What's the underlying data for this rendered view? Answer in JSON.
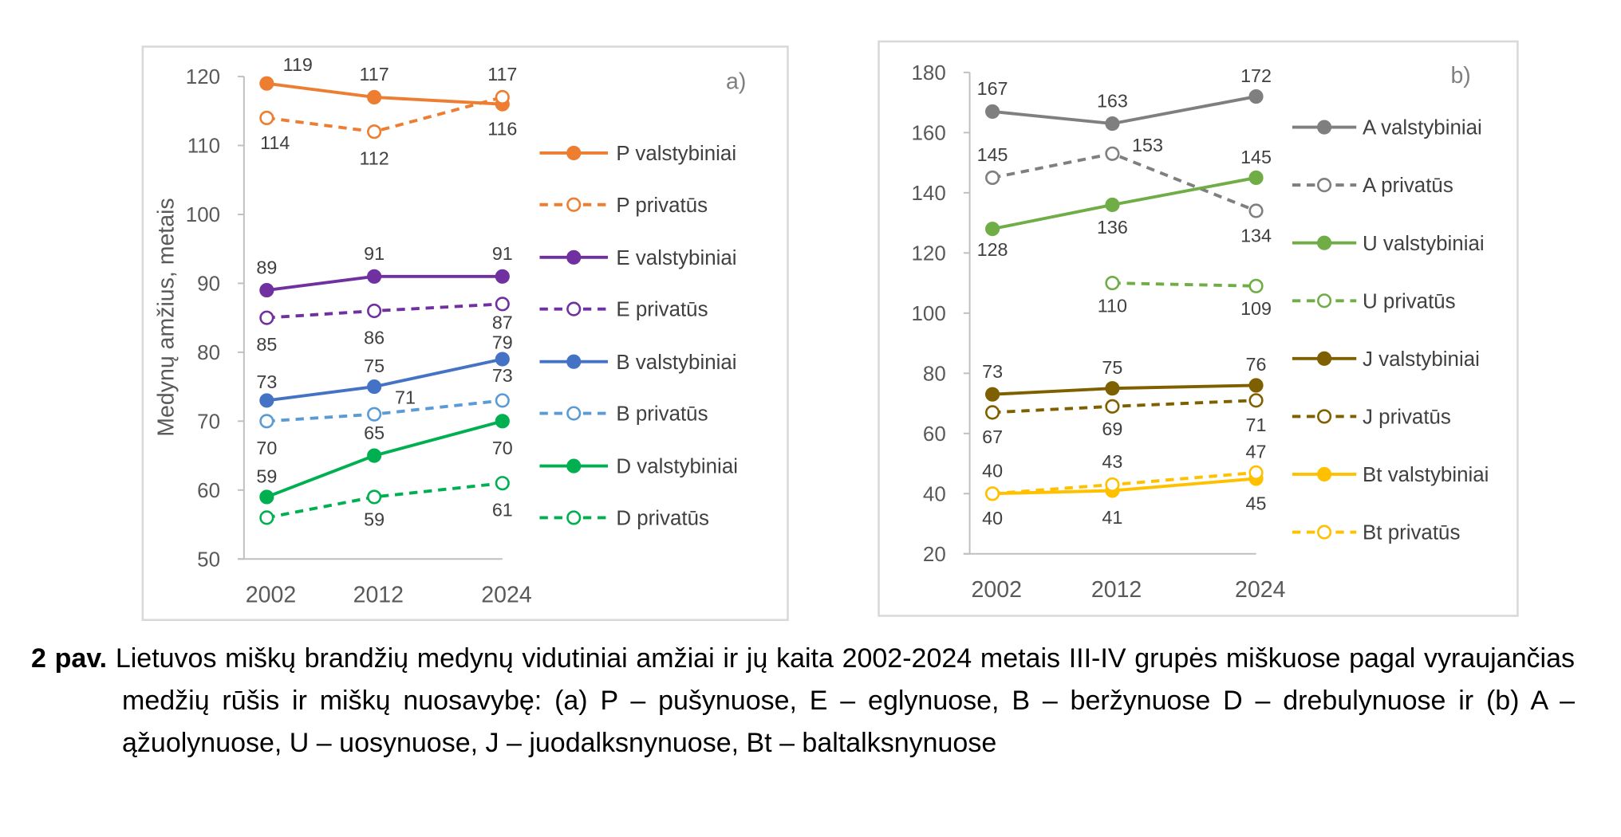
{
  "chart_data": [
    {
      "type": "line",
      "panel_label": "a)",
      "ylabel": "Medynų amžius, metais",
      "categories": [
        "2002",
        "2012",
        "2024"
      ],
      "ylim": [
        50,
        120
      ],
      "yticks": [
        50,
        60,
        70,
        80,
        90,
        100,
        110,
        120
      ],
      "grid": false,
      "legend": "right",
      "series": [
        {
          "name": "P valstybiniai",
          "values": [
            119,
            117,
            116
          ],
          "color": "#ED7D31",
          "style": "solid",
          "marker": "filled"
        },
        {
          "name": "P privatūs",
          "values": [
            114,
            112,
            117
          ],
          "color": "#ED7D31",
          "style": "dashed",
          "marker": "hollow"
        },
        {
          "name": "E valstybiniai",
          "values": [
            89,
            91,
            91
          ],
          "color": "#7030A0",
          "style": "solid",
          "marker": "filled"
        },
        {
          "name": "E privatūs",
          "values": [
            85,
            86,
            87
          ],
          "color": "#7030A0",
          "style": "dashed",
          "marker": "hollow"
        },
        {
          "name": "B valstybiniai",
          "values": [
            73,
            75,
            79
          ],
          "color": "#4472C4",
          "style": "solid",
          "marker": "filled"
        },
        {
          "name": "B privatūs",
          "values": [
            70,
            71,
            73
          ],
          "color": "#5B9BD5",
          "style": "dashed",
          "marker": "hollow"
        },
        {
          "name": "D valstybiniai",
          "values": [
            59,
            65,
            70
          ],
          "color": "#00B050",
          "style": "solid",
          "marker": "filled"
        },
        {
          "name": "D privatūs",
          "values": [
            56,
            59,
            61
          ],
          "color": "#00B050",
          "style": "dashed",
          "marker": "hollow"
        }
      ]
    },
    {
      "type": "line",
      "panel_label": "b)",
      "ylabel": "",
      "categories": [
        "2002",
        "2012",
        "2024"
      ],
      "ylim": [
        20,
        180
      ],
      "yticks": [
        20,
        40,
        60,
        80,
        100,
        120,
        140,
        160,
        180
      ],
      "grid": false,
      "legend": "right",
      "series": [
        {
          "name": "A valstybiniai",
          "values": [
            167,
            163,
            172
          ],
          "color": "#7F7F7F",
          "style": "solid",
          "marker": "filled"
        },
        {
          "name": "A privatūs",
          "values": [
            145,
            153,
            134
          ],
          "color": "#7F7F7F",
          "style": "dashed",
          "marker": "hollow"
        },
        {
          "name": "U valstybiniai",
          "values": [
            128,
            136,
            145
          ],
          "color": "#70AD47",
          "style": "solid",
          "marker": "filled"
        },
        {
          "name": "U privatūs",
          "values": [
            null,
            110,
            109
          ],
          "color": "#70AD47",
          "style": "dashed",
          "marker": "hollow"
        },
        {
          "name": "J valstybiniai",
          "values": [
            73,
            75,
            76
          ],
          "color": "#7F6000",
          "style": "solid",
          "marker": "filled"
        },
        {
          "name": "J privatūs",
          "values": [
            67,
            69,
            71
          ],
          "color": "#7F6000",
          "style": "dashed",
          "marker": "hollow"
        },
        {
          "name": "Bt valstybiniai",
          "values": [
            40,
            41,
            45
          ],
          "color": "#FFC000",
          "style": "solid",
          "marker": "filled"
        },
        {
          "name": "Bt privatūs",
          "values": [
            40,
            43,
            47
          ],
          "color": "#FFC000",
          "style": "dashed",
          "marker": "hollow"
        }
      ]
    }
  ],
  "caption": {
    "label": "2 pav.",
    "text": "Lietuvos miškų brandžių medynų vidutiniai amžiai ir jų kaita 2002-2024 metais III-IV grupės miškuose pagal vyraujančias medžių rūšis ir miškų nuosavybę: (a) P – pušynuose, E – eglynuose, B – beržynuose D – drebulynuose ir (b) A – ąžuolynuose, U – uosynuose, J – juodalksnynuose, Bt – baltalksnynuose"
  }
}
